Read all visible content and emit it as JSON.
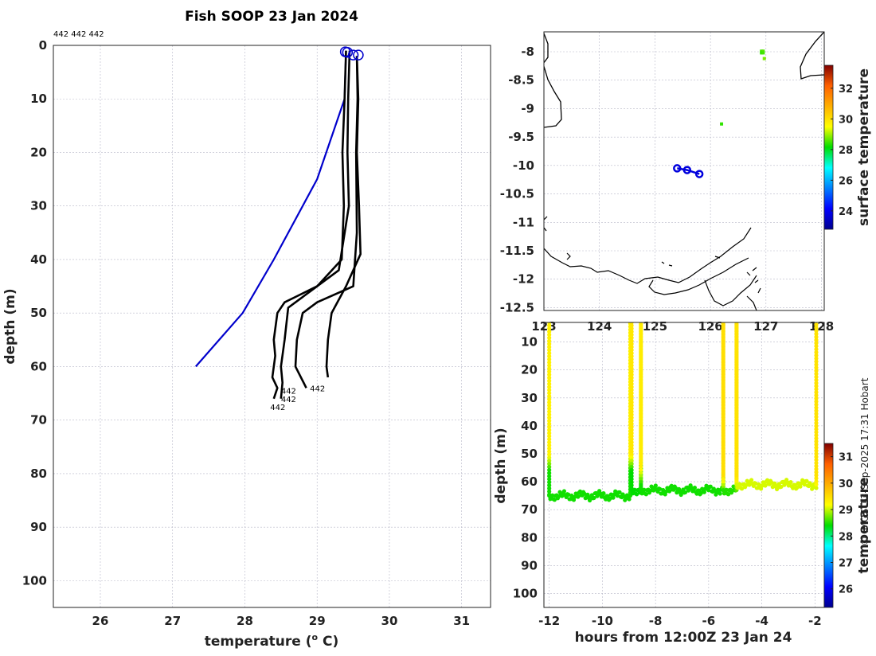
{
  "chart_data": [
    {
      "type": "line",
      "title": "Fish SOOP 23 Jan 2024",
      "subtitle": "442 442 442",
      "xlabel": "temperature (",
      "xlabel_sup": "o",
      "xlabel_tail": " C)",
      "ylabel": "depth (m)",
      "xlim": [
        25.35,
        31.4
      ],
      "ylim": [
        105,
        0
      ],
      "xticks": [
        26,
        27,
        28,
        29,
        30,
        31
      ],
      "yticks": [
        0,
        10,
        20,
        30,
        40,
        50,
        60,
        70,
        80,
        90,
        100
      ],
      "grid": true,
      "series": [
        {
          "color": "#0000cc",
          "x": [
            29.4,
            29.38,
            29.0,
            28.4,
            27.97,
            27.32
          ],
          "y": [
            1,
            10,
            25,
            40,
            50,
            60
          ]
        },
        {
          "color": "#000000",
          "x": [
            29.4,
            29.38,
            29.35,
            29.37,
            29.34,
            29.0,
            28.7,
            28.55,
            28.45,
            28.4,
            28.42,
            28.38,
            28.45,
            28.4
          ],
          "y": [
            1,
            10,
            20,
            30,
            40,
            45,
            47,
            48,
            50,
            55,
            58,
            62,
            64,
            66
          ]
        },
        {
          "color": "#000000",
          "x": [
            29.45,
            29.43,
            29.42,
            29.44,
            29.3,
            28.9,
            28.6,
            28.55,
            28.5,
            28.52,
            28.5
          ],
          "y": [
            1,
            10,
            20,
            30,
            42,
            46,
            49,
            55,
            60,
            63,
            66
          ]
        },
        {
          "color": "#000000",
          "x": [
            29.55,
            29.56,
            29.54,
            29.55,
            29.5,
            29.0,
            28.8,
            28.72,
            28.7,
            28.85
          ],
          "y": [
            2,
            10,
            20,
            35,
            45,
            48,
            50,
            55,
            60,
            64
          ]
        },
        {
          "color": "#000000",
          "x": [
            29.55,
            29.57,
            29.55,
            29.58,
            29.6,
            29.4,
            29.2,
            29.15,
            29.13,
            29.15
          ],
          "y": [
            2,
            10,
            20,
            30,
            39,
            45,
            50,
            55,
            60,
            62
          ]
        }
      ],
      "markers": [
        {
          "x": 29.39,
          "y": 1.2
        },
        {
          "x": 29.42,
          "y": 1.3
        },
        {
          "x": 29.5,
          "y": 1.8
        },
        {
          "x": 29.57,
          "y": 1.8
        }
      ],
      "end_labels": [
        {
          "x": 28.5,
          "y": 64.5,
          "text": "442"
        },
        {
          "x": 28.5,
          "y": 66,
          "text": "442"
        },
        {
          "x": 28.9,
          "y": 64,
          "text": "442"
        },
        {
          "x": 28.35,
          "y": 67.5,
          "text": "442"
        }
      ]
    },
    {
      "type": "scatter",
      "xlim": [
        123,
        128.05
      ],
      "ylim": [
        -12.55,
        -7.65
      ],
      "xticks": [
        123,
        124,
        125,
        126,
        127,
        128
      ],
      "xticklabels": [
        "123",
        "124",
        "125",
        "126",
        "127",
        "128"
      ],
      "yticks": [
        -8,
        -8.5,
        -9,
        -9.5,
        -10,
        -10.5,
        -11,
        -11.5,
        -12,
        -12.5
      ],
      "grid": true,
      "track": [
        [
          125.4,
          -10.05
        ],
        [
          125.58,
          -10.08
        ],
        [
          125.8,
          -10.15
        ]
      ],
      "colorbar": {
        "label": "surface temperature",
        "ticks": [
          24,
          26,
          28,
          30,
          32
        ],
        "range": [
          22.8,
          33.5
        ]
      },
      "sst_points": [
        {
          "x": 126.92,
          "y": -7.99,
          "value": 28.5
        },
        {
          "x": 126.95,
          "y": -7.99,
          "value": 28.6
        },
        {
          "x": 126.92,
          "y": -8.02,
          "value": 28.4
        },
        {
          "x": 126.95,
          "y": -8.02,
          "value": 28.5
        },
        {
          "x": 126.97,
          "y": -8.12,
          "value": 28.8
        },
        {
          "x": 126.2,
          "y": -9.27,
          "value": 28.4
        }
      ]
    },
    {
      "type": "scatter",
      "xlabel": "hours from 12:00Z 23 Jan 24",
      "ylabel": "depth (m)",
      "xlim": [
        -12.2,
        -1.65
      ],
      "ylim": [
        105,
        3
      ],
      "xticks": [
        -12,
        -10,
        -8,
        -6,
        -4,
        -2
      ],
      "yticks": [
        10,
        20,
        30,
        40,
        50,
        60,
        70,
        80,
        90,
        100
      ],
      "colorbar": {
        "label": "temperature",
        "ticks": [
          26,
          27,
          28,
          29,
          30,
          31
        ],
        "range": [
          25.3,
          31.5
        ]
      },
      "casts": [
        {
          "start": -12.0,
          "end": -8.95,
          "surface_temp": 29.3,
          "mld": 50,
          "bottom_temp": 28.45,
          "bottom_depth": 65
        },
        {
          "start": -8.9,
          "end": -8.55,
          "surface_temp": 29.4,
          "mld": 50,
          "bottom_temp": 28.4,
          "bottom_depth": 63
        },
        {
          "start": -8.55,
          "end": -5.45,
          "surface_temp": 29.35,
          "mld": 55,
          "bottom_temp": 28.45,
          "bottom_depth": 63
        },
        {
          "start": -5.45,
          "end": -4.95,
          "surface_temp": 29.5,
          "mld": 58,
          "bottom_temp": 28.5,
          "bottom_depth": 63
        },
        {
          "start": -4.95,
          "end": -1.95,
          "surface_temp": 29.45,
          "mld": 58,
          "bottom_temp": 29.05,
          "bottom_depth": 61
        }
      ]
    }
  ],
  "credit": "© IMOS 13-Sep-2025 17:31 Hobart"
}
